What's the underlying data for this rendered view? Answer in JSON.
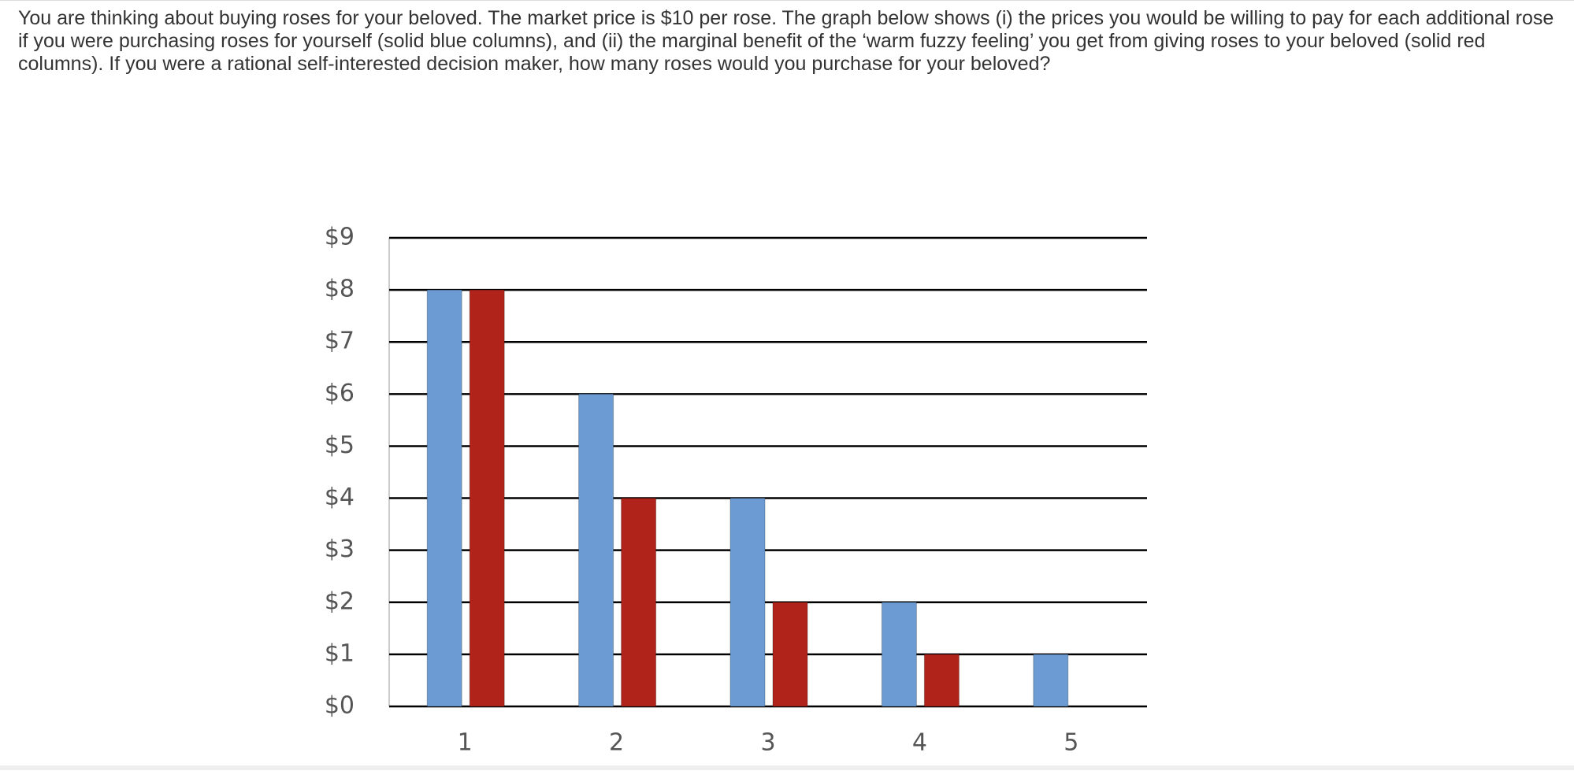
{
  "question": "You are thinking about buying roses for your beloved. The market price is $10 per rose. The graph below shows (i) the prices you would be willing to pay for each additional rose if you were purchasing roses for yourself (solid blue columns), and (ii) the marginal benefit of the ‘warm fuzzy feeling’ you get from giving roses to your beloved (solid red columns). If you were a rational self-interested decision maker, how many roses would you purchase for your beloved?",
  "chart_data": {
    "type": "bar",
    "categories": [
      "1",
      "2",
      "3",
      "4",
      "5"
    ],
    "series": [
      {
        "color": "#6b9bd2",
        "values": [
          8,
          6,
          4,
          2,
          1
        ]
      },
      {
        "color": "#b0231b",
        "values": [
          8,
          4,
          2,
          1,
          null
        ]
      }
    ],
    "ylim": [
      0,
      9
    ],
    "yticks": [
      {
        "value": 0,
        "label": "$0"
      },
      {
        "value": 1,
        "label": "$1"
      },
      {
        "value": 2,
        "label": "$2"
      },
      {
        "value": 3,
        "label": "$3"
      },
      {
        "value": 4,
        "label": "$4"
      },
      {
        "value": 5,
        "label": "$5"
      },
      {
        "value": 6,
        "label": "$6"
      },
      {
        "value": 7,
        "label": "$7"
      },
      {
        "value": 8,
        "label": "$8"
      },
      {
        "value": 9,
        "label": "$9"
      }
    ],
    "grid": true
  }
}
